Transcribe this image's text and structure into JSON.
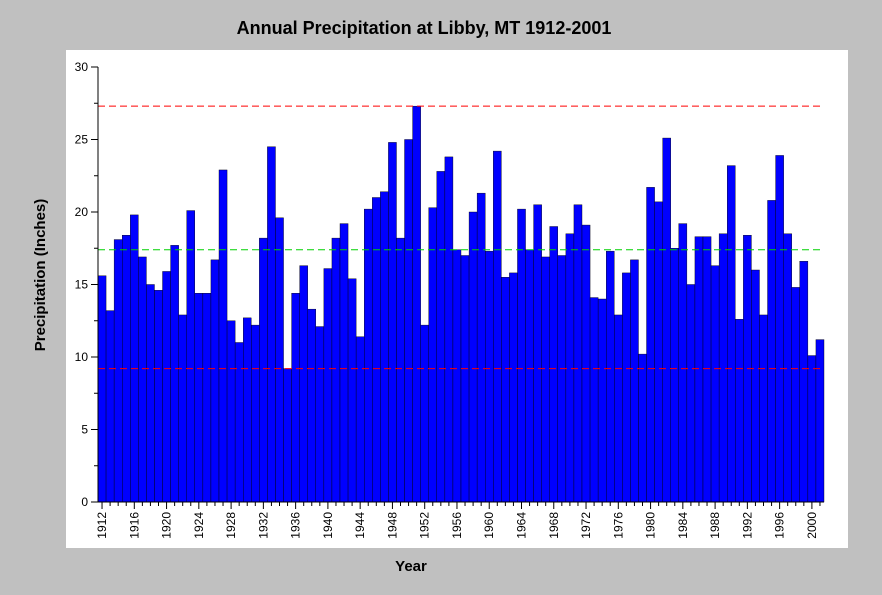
{
  "chart_data": {
    "type": "bar",
    "title": "Annual Precipitation at Libby, MT 1912-2001",
    "xlabel": "Year",
    "ylabel": "Precipitation (Inches)",
    "ylim": [
      0,
      30
    ],
    "yticks": [
      0,
      5,
      10,
      15,
      20,
      25,
      30
    ],
    "xticks": [
      1912,
      1916,
      1920,
      1924,
      1928,
      1932,
      1936,
      1940,
      1944,
      1948,
      1952,
      1956,
      1960,
      1964,
      1968,
      1972,
      1976,
      1980,
      1984,
      1988,
      1992,
      1996,
      2000
    ],
    "grid": false,
    "bar_color": "#0000ff",
    "categories": [
      1912,
      1913,
      1914,
      1915,
      1916,
      1917,
      1918,
      1919,
      1920,
      1921,
      1922,
      1923,
      1924,
      1925,
      1926,
      1927,
      1928,
      1929,
      1930,
      1931,
      1932,
      1933,
      1934,
      1935,
      1936,
      1937,
      1938,
      1939,
      1940,
      1941,
      1942,
      1943,
      1944,
      1945,
      1946,
      1947,
      1948,
      1949,
      1950,
      1951,
      1952,
      1953,
      1954,
      1955,
      1956,
      1957,
      1958,
      1959,
      1960,
      1961,
      1962,
      1963,
      1964,
      1965,
      1966,
      1967,
      1968,
      1969,
      1970,
      1971,
      1972,
      1973,
      1974,
      1975,
      1976,
      1977,
      1978,
      1979,
      1980,
      1981,
      1982,
      1983,
      1984,
      1985,
      1986,
      1987,
      1988,
      1989,
      1990,
      1991,
      1992,
      1993,
      1994,
      1995,
      1996,
      1997,
      1998,
      1999,
      2000,
      2001
    ],
    "values": [
      15.6,
      13.2,
      18.1,
      18.4,
      19.8,
      16.9,
      15.0,
      14.6,
      15.9,
      17.7,
      12.9,
      20.1,
      14.4,
      14.4,
      16.7,
      22.9,
      12.5,
      11.0,
      12.7,
      12.2,
      18.2,
      24.5,
      19.6,
      9.2,
      14.4,
      16.3,
      13.3,
      12.1,
      16.1,
      18.2,
      19.2,
      15.4,
      11.4,
      20.2,
      21.0,
      21.4,
      24.8,
      18.2,
      25.0,
      27.3,
      12.2,
      20.3,
      22.8,
      23.8,
      17.4,
      17.0,
      20.0,
      21.3,
      17.3,
      24.2,
      15.5,
      15.8,
      20.2,
      17.4,
      20.5,
      16.9,
      19.0,
      17.0,
      18.5,
      20.5,
      19.1,
      14.1,
      14.0,
      17.3,
      12.9,
      15.8,
      16.7,
      10.2,
      21.7,
      20.7,
      25.1,
      17.5,
      19.2,
      15.0,
      18.3,
      18.3,
      16.3,
      18.5,
      23.2,
      12.6,
      18.4,
      16.0,
      12.9,
      20.8,
      23.9,
      18.5,
      14.8,
      16.6,
      10.1,
      11.2
    ],
    "reference_lines": [
      {
        "value": 27.3,
        "color": "#ff0000"
      },
      {
        "value": 17.4,
        "color": "#00d000"
      },
      {
        "value": 9.2,
        "color": "#ff0000"
      }
    ]
  }
}
